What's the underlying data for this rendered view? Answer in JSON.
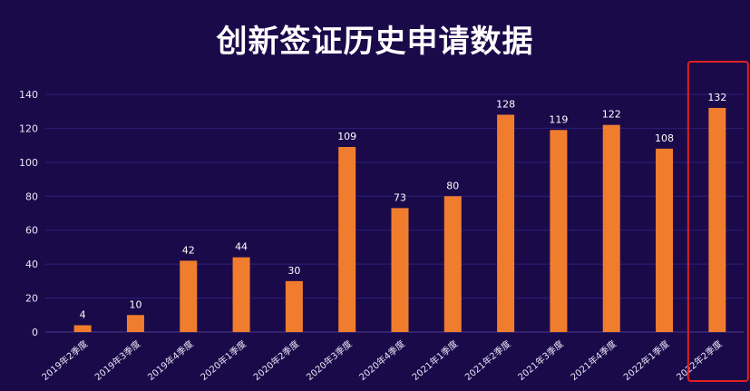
{
  "chart_data": {
    "type": "bar",
    "title": "创新签证历史申请数据",
    "categories": [
      "2019年2季度",
      "2019年3季度",
      "2019年4季度",
      "2020年1季度",
      "2020年2季度",
      "2020年3季度",
      "2020年4季度",
      "2021年1季度",
      "2021年2季度",
      "2021年3季度",
      "2021年4季度",
      "2022年1季度",
      "2022年2季度"
    ],
    "values": [
      4,
      10,
      42,
      44,
      30,
      109,
      73,
      80,
      128,
      119,
      122,
      108,
      132
    ],
    "ylim": [
      0,
      140
    ],
    "yticks": [
      0,
      20,
      40,
      60,
      80,
      100,
      120,
      140
    ],
    "grid": true,
    "highlight_index": 12
  },
  "colors": {
    "background": "#1a0a4a",
    "bar": "#f07d2e",
    "highlight_box": "#e02020"
  }
}
